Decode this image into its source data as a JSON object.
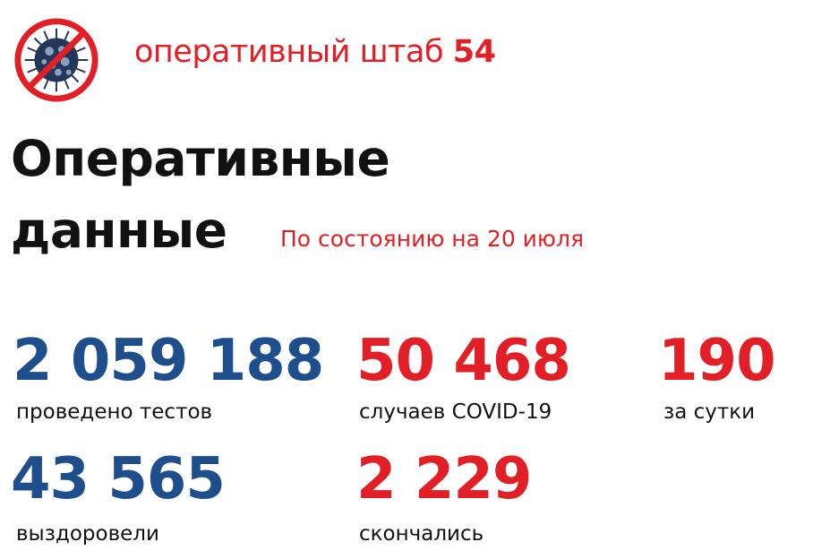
{
  "header": {
    "logo_icon": "crossed-out-virus-icon",
    "text": "оперативный штаб",
    "number": "54"
  },
  "title": {
    "line1": "Оперативные",
    "line2": "данные"
  },
  "subtitle": "По состоянию на 20 июля",
  "colors": {
    "red": "#e21f26",
    "blue": "#1f4e8c"
  },
  "stats": [
    {
      "value": "2 059 188",
      "label": "проведено тестов"
    },
    {
      "value": "50 468",
      "label": "случаев COVID-19"
    },
    {
      "value": "190",
      "label": "за сутки"
    },
    {
      "value": "43 565",
      "label": "выздоровели"
    },
    {
      "value": "2 229",
      "label": "скончались"
    }
  ]
}
